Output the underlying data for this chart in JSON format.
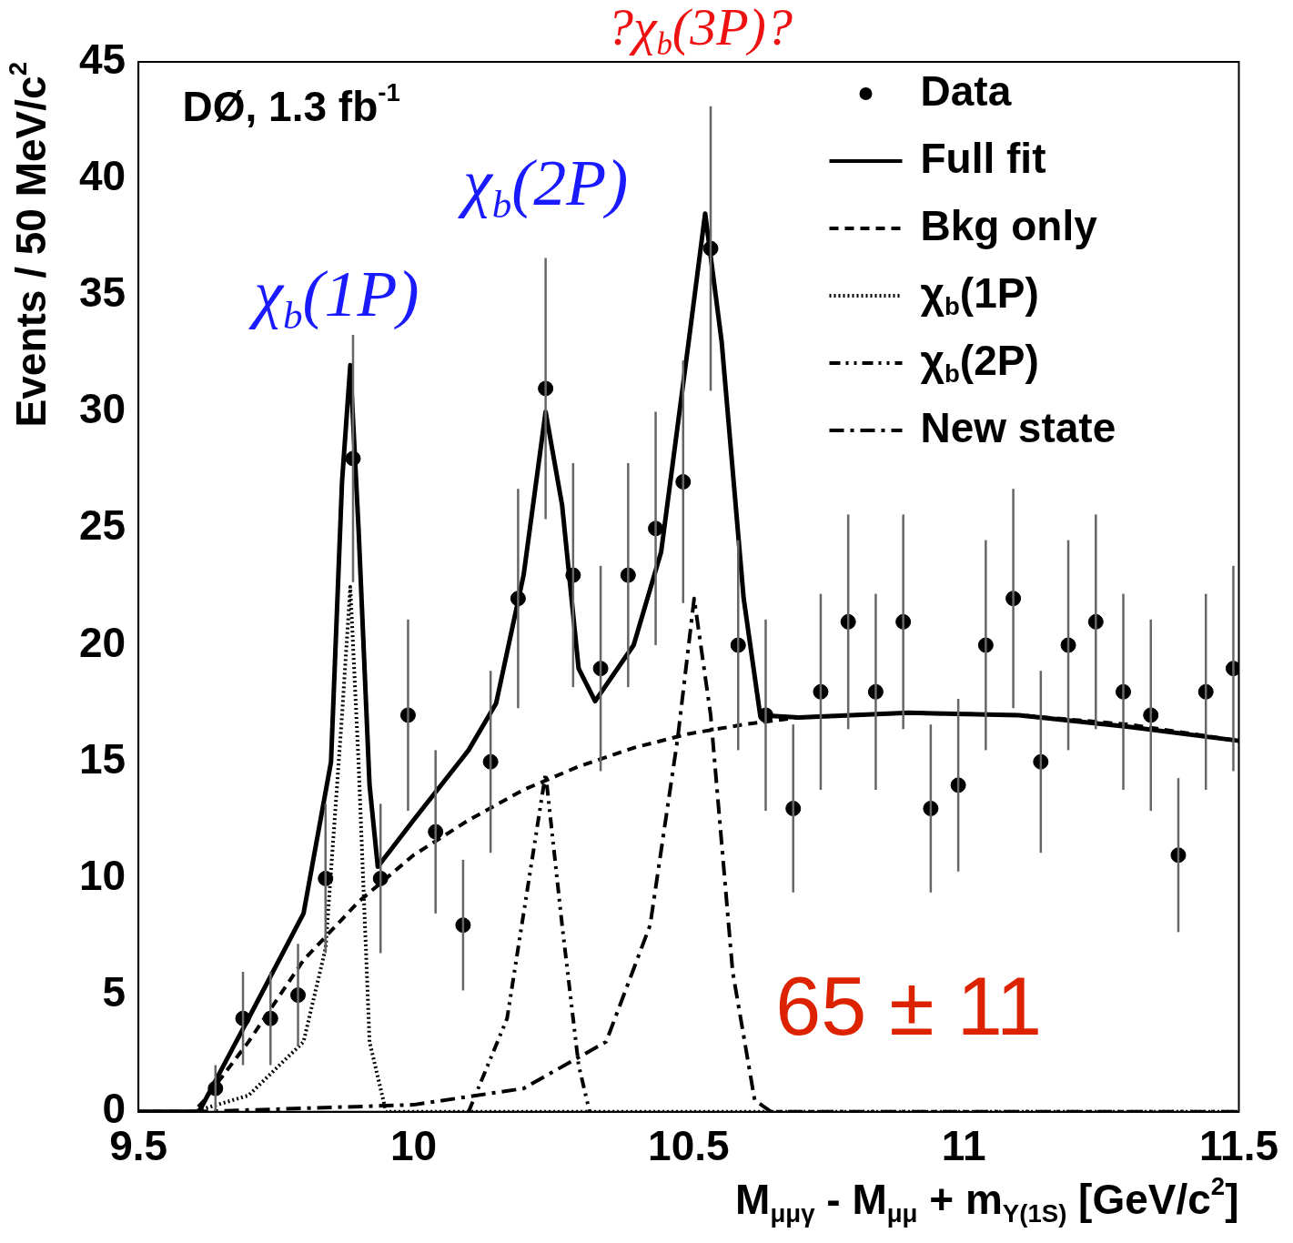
{
  "chart_data": {
    "type": "scatter",
    "xlabel": "M$_{μμγ}$ - M$_{μμ}$ + m$_{Υ(1S)}$ [GeV/c$^{2}$]",
    "ylabel": "Events / 50 MeV/c$^{2}$",
    "xlim": [
      9.5,
      11.5
    ],
    "xticks": [
      9.5,
      10,
      10.5,
      11,
      11.5
    ],
    "ylim": [
      0,
      45
    ],
    "yticks": [
      0,
      5,
      10,
      15,
      20,
      25,
      30,
      35,
      40,
      45
    ],
    "grid": false,
    "legend": "top right",
    "series": [
      {
        "name": "Data",
        "type": "scatter",
        "color": "#000000",
        "marker": "circle",
        "x": [
          9.64,
          9.69,
          9.74,
          9.79,
          9.84,
          9.89,
          9.94,
          9.99,
          10.04,
          10.09,
          10.14,
          10.19,
          10.24,
          10.29,
          10.34,
          10.39,
          10.44,
          10.49,
          10.54,
          10.59,
          10.64,
          10.69,
          10.74,
          10.79,
          10.84,
          10.89,
          10.94,
          10.99,
          11.04,
          11.09,
          11.14,
          11.19,
          11.24,
          11.29,
          11.34,
          11.39,
          11.44,
          11.49
        ],
        "values": [
          1,
          4,
          4,
          5,
          10,
          28,
          10,
          17,
          12,
          8,
          15,
          22,
          31,
          23,
          19,
          23,
          25,
          27,
          37,
          20,
          17,
          13,
          18,
          21,
          18,
          21,
          13,
          14,
          20,
          22,
          15,
          20,
          21,
          18,
          17,
          11,
          18,
          19
        ],
        "errors": [
          1,
          2,
          2,
          2.2,
          3.2,
          5.3,
          3.2,
          4.1,
          3.5,
          2.8,
          3.9,
          4.7,
          5.6,
          4.8,
          4.4,
          4.8,
          5,
          5.2,
          6.1,
          4.5,
          4.1,
          3.6,
          4.2,
          4.6,
          4.2,
          4.6,
          3.6,
          3.7,
          4.5,
          4.7,
          3.9,
          4.5,
          4.6,
          4.2,
          4.1,
          3.3,
          4.2,
          4.4
        ]
      },
      {
        "name": "Full fit",
        "type": "line",
        "color": "#000000",
        "line_style": "solid",
        "x": [
          9.5,
          9.61,
          9.7,
          9.8,
          9.85,
          9.87,
          9.885,
          9.9,
          9.92,
          9.935,
          10.0,
          10.1,
          10.15,
          10.2,
          10.24,
          10.27,
          10.3,
          10.33,
          10.4,
          10.45,
          10.5,
          10.53,
          10.56,
          10.6,
          10.63,
          10.7,
          10.9,
          11.1,
          11.3,
          11.5
        ],
        "values": [
          0,
          0,
          4,
          8.5,
          15,
          27,
          32,
          25,
          14,
          10.5,
          12.5,
          15.5,
          17.5,
          23,
          30,
          26,
          19,
          17.6,
          20,
          24,
          33,
          38.5,
          33,
          22,
          17,
          16.9,
          17.1,
          17,
          16.5,
          15.9
        ]
      },
      {
        "name": "Bkg only",
        "type": "line",
        "color": "#000000",
        "line_style": "dashed",
        "x": [
          9.5,
          9.6,
          9.62,
          9.7,
          9.8,
          9.9,
          10.0,
          10.1,
          10.2,
          10.3,
          10.4,
          10.5,
          10.6,
          10.7,
          10.9,
          11.1,
          11.3,
          11.5
        ],
        "values": [
          0,
          0,
          0.5,
          3,
          6.5,
          9,
          11,
          12.5,
          13.8,
          14.8,
          15.6,
          16.2,
          16.6,
          16.9,
          17.1,
          17,
          16.6,
          15.9
        ]
      },
      {
        "name": "χ$_{b}$(1P)",
        "type": "line",
        "color": "#000000",
        "line_style": "dotted",
        "x": [
          9.5,
          9.6,
          9.7,
          9.8,
          9.84,
          9.87,
          9.885,
          9.9,
          9.92,
          9.95,
          11.5
        ],
        "values": [
          0,
          0,
          0.7,
          3,
          7,
          17,
          22.5,
          15,
          3,
          0,
          0
        ]
      },
      {
        "name": "χ$_{b}$(2P)",
        "type": "line",
        "color": "#000000",
        "line_style": "dashdotdot",
        "x": [
          10.1,
          10.17,
          10.21,
          10.24,
          10.27,
          10.3,
          10.32
        ],
        "values": [
          0,
          4,
          10,
          14.5,
          8,
          2,
          0
        ]
      },
      {
        "name": "New state",
        "type": "line",
        "color": "#000000",
        "line_style": "dashdot",
        "x": [
          9.6,
          10.0,
          10.2,
          10.35,
          10.43,
          10.48,
          10.51,
          10.54,
          10.58,
          10.62,
          10.65,
          11.5
        ],
        "values": [
          0,
          0.3,
          1,
          3,
          8,
          16,
          22,
          17,
          6,
          0.5,
          0,
          0
        ]
      }
    ],
    "annotations": [
      "DØ, 1.3 fb$^{-1}$",
      "χ$_{b}$(1P)",
      "χ$_{b}$(2P)",
      "?χ$_{b}$(3P)?",
      "65 ± 11"
    ]
  }
}
